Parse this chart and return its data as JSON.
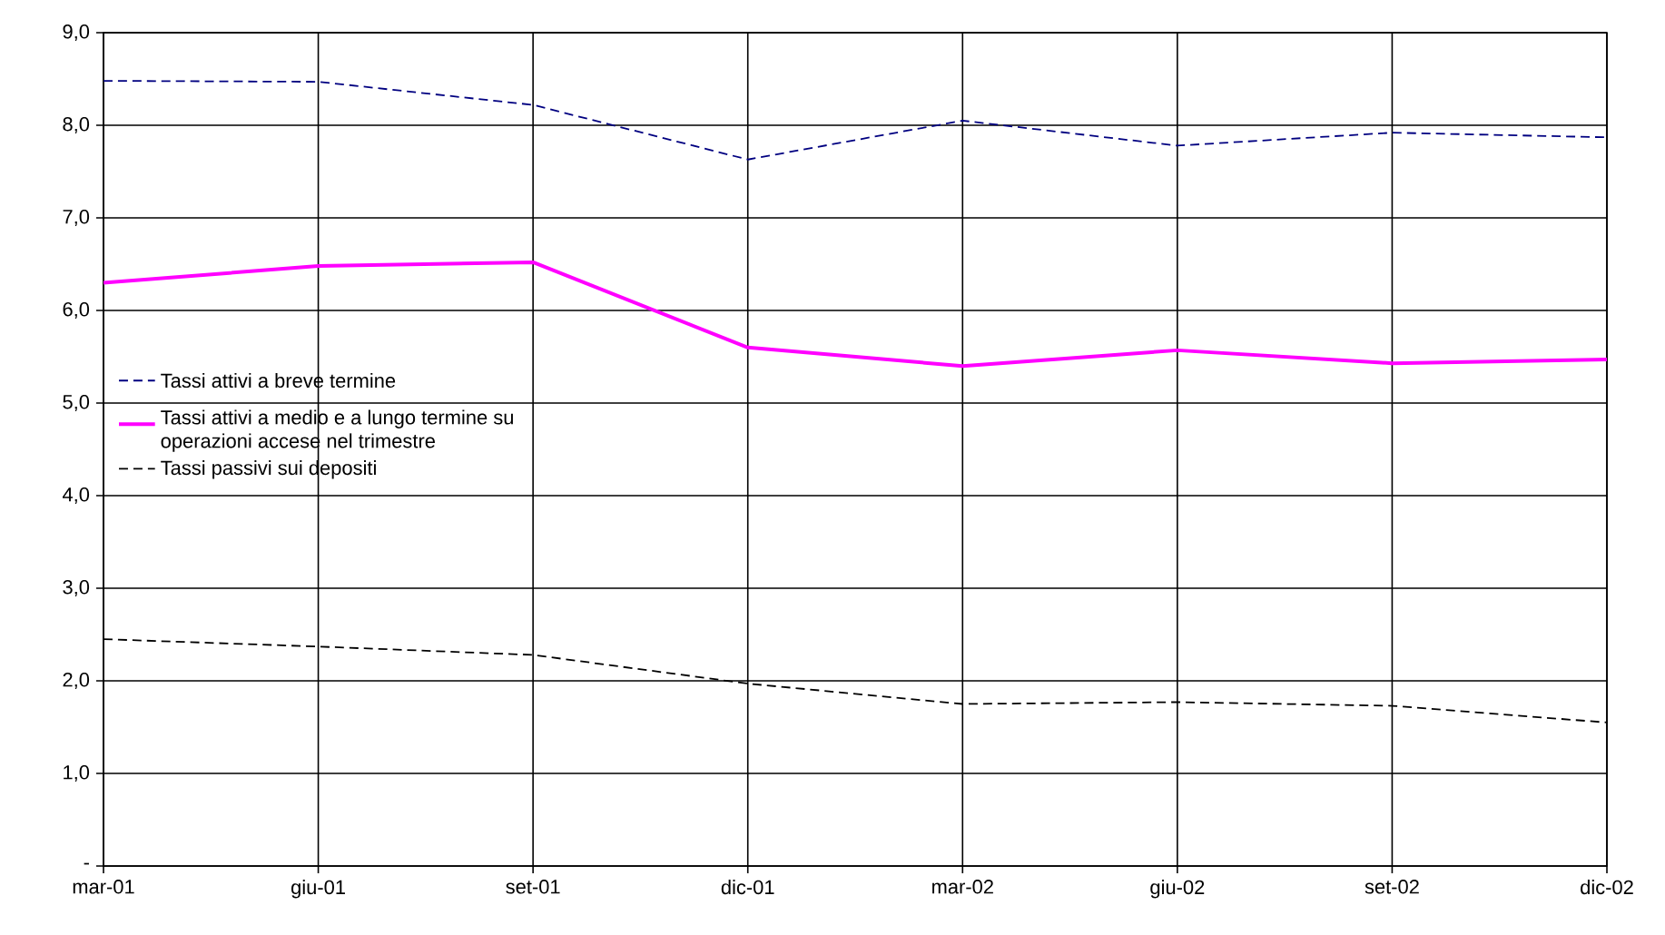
{
  "chart_data": {
    "type": "line",
    "categories": [
      "mar-01",
      "giu-01",
      "set-01",
      "dic-01",
      "mar-02",
      "giu-02",
      "set-02",
      "dic-02"
    ],
    "series": [
      {
        "name": "Tassi attivi a breve termine",
        "color": "#000080",
        "line_style": "dashed",
        "values": [
          8.48,
          8.47,
          8.22,
          7.63,
          8.05,
          7.78,
          7.92,
          7.87
        ]
      },
      {
        "name": "Tassi attivi a medio e a lungo termine su operazioni accese nel trimestre",
        "color": "#ff00ff",
        "line_style": "solid",
        "values": [
          6.3,
          6.48,
          6.52,
          5.6,
          5.4,
          5.57,
          5.43,
          5.47
        ]
      },
      {
        "name": "Tassi passivi sui depositi",
        "color": "#000000",
        "line_style": "dashed",
        "values": [
          2.45,
          2.37,
          2.28,
          1.97,
          1.75,
          1.77,
          1.73,
          1.55
        ]
      }
    ],
    "ylim": [
      0,
      9
    ],
    "yticks": [
      {
        "value": 0,
        "label": "-"
      },
      {
        "value": 1,
        "label": "1,0"
      },
      {
        "value": 2,
        "label": "2,0"
      },
      {
        "value": 3,
        "label": "3,0"
      },
      {
        "value": 4,
        "label": "4,0"
      },
      {
        "value": 5,
        "label": "5,0"
      },
      {
        "value": 6,
        "label": "6,0"
      },
      {
        "value": 7,
        "label": "7,0"
      },
      {
        "value": 8,
        "label": "8,0"
      },
      {
        "value": 9,
        "label": "9,0"
      }
    ],
    "grid": true,
    "legend": "left",
    "marker": "none"
  }
}
